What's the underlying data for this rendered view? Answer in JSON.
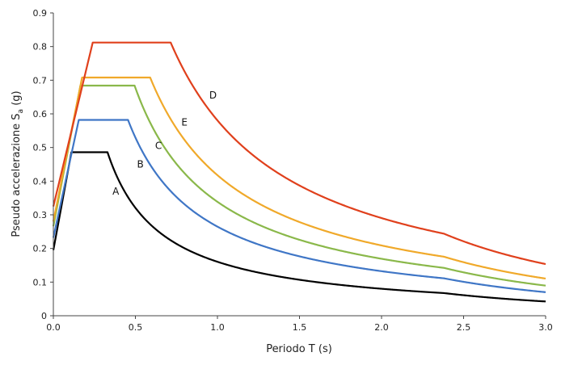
{
  "chart_data": {
    "type": "line",
    "title": "",
    "xlabel": "Periodo T (s)",
    "ylabel_main": "Pseudo accelerazione S",
    "ylabel_sub": "a",
    "ylabel_unit": " (g)",
    "xlim": [
      0,
      3
    ],
    "ylim": [
      0,
      0.9
    ],
    "x_ticks": [
      "0.0",
      "0.5",
      "1.0",
      "1.5",
      "2.0",
      "2.5",
      "3.0"
    ],
    "y_ticks": [
      "0",
      "0.1",
      "0.2",
      "0.3",
      "0.4",
      "0.5",
      "0.6",
      "0.7",
      "0.8",
      "0.9"
    ],
    "grid": false,
    "series": [
      {
        "name": "A",
        "color": "#000000",
        "ag": 0.195,
        "peak": 0.486,
        "Tb": 0.11,
        "Tc": 0.33,
        "Td": 2.38,
        "label_x": 0.36,
        "label_y": 0.37
      },
      {
        "name": "B",
        "color": "#3f76c6",
        "ag": 0.232,
        "peak": 0.582,
        "Tb": 0.155,
        "Tc": 0.455,
        "Td": 2.38,
        "label_x": 0.51,
        "label_y": 0.45
      },
      {
        "name": "C",
        "color": "#8ab84a",
        "ag": 0.266,
        "peak": 0.684,
        "Tb": 0.165,
        "Tc": 0.495,
        "Td": 2.38,
        "label_x": 0.62,
        "label_y": 0.505
      },
      {
        "name": "E",
        "color": "#f0a92a",
        "ag": 0.28,
        "peak": 0.708,
        "Tb": 0.175,
        "Tc": 0.59,
        "Td": 2.38,
        "label_x": 0.78,
        "label_y": 0.575
      },
      {
        "name": "D",
        "color": "#e0401c",
        "ag": 0.325,
        "peak": 0.812,
        "Tb": 0.24,
        "Tc": 0.715,
        "Td": 2.38,
        "label_x": 0.95,
        "label_y": 0.655
      }
    ]
  }
}
